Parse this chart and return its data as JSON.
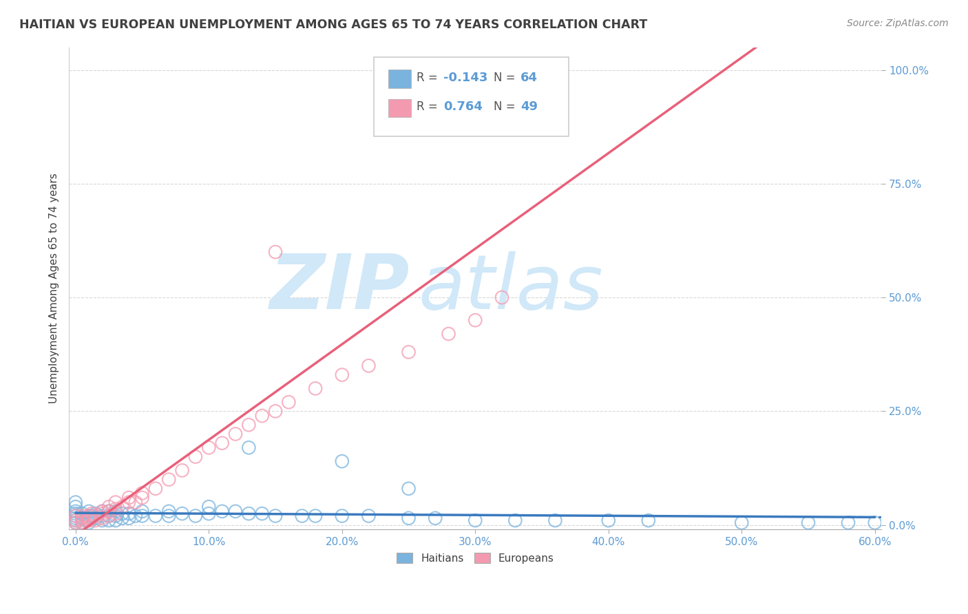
{
  "title": "HAITIAN VS EUROPEAN UNEMPLOYMENT AMONG AGES 65 TO 74 YEARS CORRELATION CHART",
  "source": "Source: ZipAtlas.com",
  "xlim": [
    -0.005,
    0.605
  ],
  "ylim": [
    -0.01,
    1.05
  ],
  "haitian_R": -0.143,
  "haitian_N": 64,
  "european_R": 0.764,
  "european_N": 49,
  "haitian_color": "#7ab4de",
  "european_color": "#f49ab0",
  "haitian_line_color": "#3a7abf",
  "european_line_color": "#e8607a",
  "watermark_zip": "ZIP",
  "watermark_atlas": "atlas",
  "watermark_color": "#d0e8f8",
  "background_color": "#ffffff",
  "grid_color": "#d8d8d8",
  "title_color": "#404040",
  "tick_label_color": "#5b9bd5",
  "legend_R_color": "#5b9bd5",
  "haitian_scatter_x": [
    0.0,
    0.0,
    0.0,
    0.0,
    0.0,
    0.0,
    0.0,
    0.0,
    0.005,
    0.005,
    0.005,
    0.01,
    0.01,
    0.01,
    0.01,
    0.012,
    0.015,
    0.015,
    0.02,
    0.02,
    0.02,
    0.025,
    0.025,
    0.025,
    0.03,
    0.03,
    0.03,
    0.035,
    0.035,
    0.04,
    0.04,
    0.045,
    0.05,
    0.05,
    0.06,
    0.07,
    0.07,
    0.08,
    0.09,
    0.1,
    0.1,
    0.11,
    0.12,
    0.13,
    0.14,
    0.15,
    0.17,
    0.18,
    0.2,
    0.22,
    0.25,
    0.27,
    0.3,
    0.33,
    0.36,
    0.4,
    0.43,
    0.5,
    0.55,
    0.58,
    0.6,
    0.2,
    0.25,
    0.13
  ],
  "haitian_scatter_y": [
    0.005,
    0.01,
    0.015,
    0.02,
    0.025,
    0.03,
    0.04,
    0.05,
    0.005,
    0.015,
    0.025,
    0.005,
    0.01,
    0.02,
    0.03,
    0.02,
    0.015,
    0.025,
    0.01,
    0.02,
    0.03,
    0.01,
    0.02,
    0.03,
    0.01,
    0.02,
    0.03,
    0.015,
    0.025,
    0.015,
    0.025,
    0.02,
    0.02,
    0.03,
    0.02,
    0.02,
    0.03,
    0.025,
    0.02,
    0.025,
    0.04,
    0.03,
    0.03,
    0.025,
    0.025,
    0.02,
    0.02,
    0.02,
    0.02,
    0.02,
    0.015,
    0.015,
    0.01,
    0.01,
    0.01,
    0.01,
    0.01,
    0.005,
    0.005,
    0.005,
    0.005,
    0.14,
    0.08,
    0.17
  ],
  "european_scatter_x": [
    0.0,
    0.0,
    0.0,
    0.005,
    0.005,
    0.005,
    0.005,
    0.01,
    0.01,
    0.01,
    0.012,
    0.015,
    0.015,
    0.02,
    0.02,
    0.02,
    0.025,
    0.025,
    0.025,
    0.03,
    0.03,
    0.03,
    0.035,
    0.04,
    0.04,
    0.045,
    0.05,
    0.05,
    0.06,
    0.07,
    0.08,
    0.09,
    0.1,
    0.11,
    0.12,
    0.13,
    0.14,
    0.15,
    0.16,
    0.18,
    0.2,
    0.22,
    0.25,
    0.28,
    0.3,
    0.32,
    0.35,
    0.35,
    0.15
  ],
  "european_scatter_y": [
    0.005,
    0.01,
    0.02,
    0.005,
    0.01,
    0.015,
    0.02,
    0.01,
    0.015,
    0.02,
    0.025,
    0.01,
    0.02,
    0.015,
    0.025,
    0.03,
    0.02,
    0.03,
    0.04,
    0.025,
    0.035,
    0.05,
    0.04,
    0.05,
    0.06,
    0.05,
    0.06,
    0.07,
    0.08,
    0.1,
    0.12,
    0.15,
    0.17,
    0.18,
    0.2,
    0.22,
    0.24,
    0.25,
    0.27,
    0.3,
    0.33,
    0.35,
    0.38,
    0.42,
    0.45,
    0.5,
    1.0,
    1.0,
    0.6
  ]
}
